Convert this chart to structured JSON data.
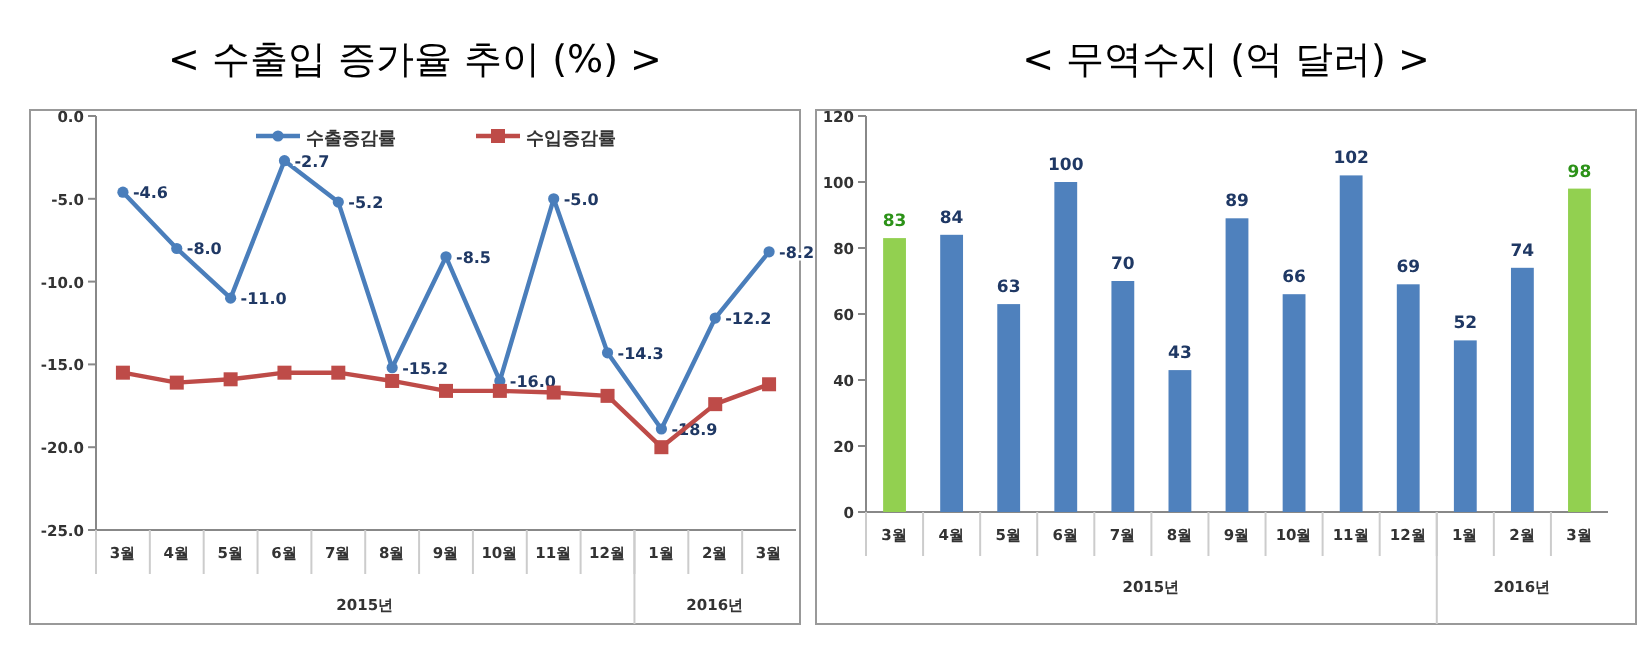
{
  "chart_data": [
    {
      "type": "line",
      "title": "<  수출입 증가율 추이 (%)  >",
      "categories": [
        "3월",
        "4월",
        "5월",
        "6월",
        "7월",
        "8월",
        "9월",
        "10월",
        "11월",
        "12월",
        "1월",
        "2월",
        "3월"
      ],
      "series": [
        {
          "name": "수출증감률",
          "color": "#4a7ebb",
          "marker": "circle",
          "values": [
            -4.6,
            -8.0,
            -11.0,
            -2.7,
            -5.2,
            -15.2,
            -8.5,
            -16.0,
            -5.0,
            -14.3,
            -18.9,
            -12.2,
            -8.2
          ],
          "value_labels": [
            "-4.6",
            "-8.0",
            "-11.0",
            "-2.7",
            "-5.2",
            "-15.2",
            "-8.5",
            "-16.0",
            "-5.0",
            "-14.3",
            "-18.9",
            "-12.2",
            "-8.2"
          ]
        },
        {
          "name": "수입증감률",
          "color": "#be4b48",
          "marker": "square",
          "values": [
            -15.5,
            -16.1,
            -15.9,
            -15.5,
            -15.5,
            -16.0,
            -16.6,
            -16.6,
            -16.7,
            -16.9,
            -20.0,
            -17.4,
            -16.2
          ]
        }
      ],
      "ylim": [
        -25,
        0
      ],
      "yticks": [
        {
          "value": 0,
          "label": "0.0"
        },
        {
          "value": -5,
          "label": "-5.0"
        },
        {
          "value": -10,
          "label": "-10.0"
        },
        {
          "value": -15,
          "label": "-15.0"
        },
        {
          "value": -20,
          "label": "-20.0"
        },
        {
          "value": -25,
          "label": "-25.0"
        }
      ],
      "legend": "top",
      "annotations": [
        "2015년",
        "2016년"
      ]
    },
    {
      "type": "bar",
      "title": "<  무역수지 (억 달러)  >",
      "categories": [
        "3월",
        "4월",
        "5월",
        "6월",
        "7월",
        "8월",
        "9월",
        "10월",
        "11월",
        "12월",
        "1월",
        "2월",
        "3월"
      ],
      "values": [
        83,
        84,
        63,
        100,
        70,
        43,
        89,
        66,
        102,
        69,
        52,
        74,
        98
      ],
      "colors": [
        "#92d050",
        "#4f81bd",
        "#4f81bd",
        "#4f81bd",
        "#4f81bd",
        "#4f81bd",
        "#4f81bd",
        "#4f81bd",
        "#4f81bd",
        "#4f81bd",
        "#4f81bd",
        "#4f81bd",
        "#92d050"
      ],
      "ylim": [
        0,
        120
      ],
      "yticks": [
        0,
        20,
        40,
        60,
        80,
        100,
        120
      ],
      "data_labels": true,
      "annotations": [
        "2015년",
        "2016년"
      ]
    }
  ]
}
